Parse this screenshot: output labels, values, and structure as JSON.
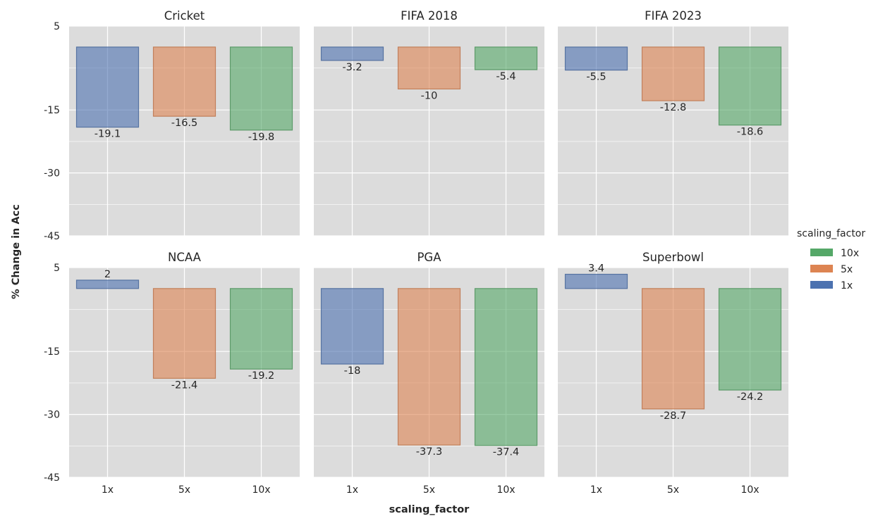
{
  "chart_data": {
    "type": "bar",
    "xlabel": "scaling_factor",
    "ylabel": "% Change in Acc",
    "categories": [
      "1x",
      "5x",
      "10x"
    ],
    "ylim": [
      -45,
      5
    ],
    "yticks": [
      5,
      -15,
      -30,
      -45
    ],
    "grid": true,
    "colors": {
      "1x": "#4c72b0",
      "5x": "#dd8452",
      "10x": "#55a868"
    },
    "legend": {
      "title": "scaling_factor",
      "position": "right",
      "entries": [
        "10x",
        "5x",
        "1x"
      ]
    },
    "panels": [
      {
        "title": "Cricket",
        "values": [
          -19.1,
          -16.5,
          -19.8
        ],
        "labels": [
          "-19.1",
          "-16.5",
          "-19.8"
        ]
      },
      {
        "title": "FIFA 2018",
        "values": [
          -3.2,
          -10,
          -5.4
        ],
        "labels": [
          "-3.2",
          "-10",
          "-5.4"
        ]
      },
      {
        "title": "FIFA 2023",
        "values": [
          -5.5,
          -12.8,
          -18.6
        ],
        "labels": [
          "-5.5",
          "-12.8",
          "-18.6"
        ]
      },
      {
        "title": "NCAA",
        "values": [
          2,
          -21.4,
          -19.2
        ],
        "labels": [
          "2",
          "-21.4",
          "-19.2"
        ]
      },
      {
        "title": "PGA",
        "values": [
          -18,
          -37.3,
          -37.4
        ],
        "labels": [
          "-18",
          "-37.3",
          "-37.4"
        ]
      },
      {
        "title": "Superbowl",
        "values": [
          3.4,
          -28.7,
          -24.2
        ],
        "labels": [
          "3.4",
          "-28.7",
          "-24.2"
        ]
      }
    ]
  }
}
